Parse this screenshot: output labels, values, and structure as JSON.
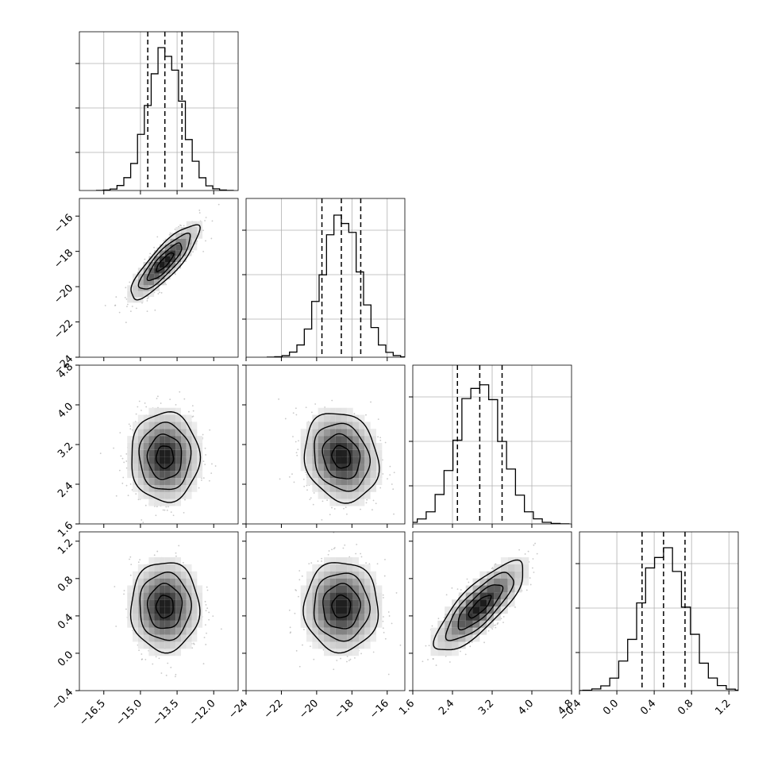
{
  "chart_data": {
    "type": "corner",
    "title": "",
    "xlabel": "",
    "ylabel": "",
    "params": [
      {
        "center": -14.0,
        "sigma": 0.7,
        "range": [
          -17.5,
          -11.0
        ],
        "ticks": [
          -16.5,
          -15.0,
          -13.5,
          -12.0
        ],
        "tick_labels": [
          "−16.5",
          "−15.0",
          "−13.5",
          "−12.0"
        ],
        "quantiles": [
          -14.7,
          -14.0,
          -13.3
        ]
      },
      {
        "center": -18.6,
        "sigma": 1.05,
        "range": [
          -24.0,
          -15.0
        ],
        "ticks": [
          -24,
          -22,
          -20,
          -18,
          -16
        ],
        "tick_labels": [
          "−24",
          "−22",
          "−20",
          "−18",
          "−16"
        ],
        "quantiles": [
          -19.7,
          -18.6,
          -17.5
        ]
      },
      {
        "center": 2.95,
        "sigma": 0.45,
        "range": [
          1.6,
          4.8
        ],
        "ticks": [
          1.6,
          2.4,
          3.2,
          4.0,
          4.8
        ],
        "tick_labels": [
          "1.6",
          "2.4",
          "3.2",
          "4.0",
          "4.8"
        ],
        "quantiles": [
          2.5,
          2.95,
          3.4
        ]
      },
      {
        "center": 0.5,
        "sigma": 0.24,
        "range": [
          -0.4,
          1.3
        ],
        "ticks": [
          -0.4,
          0.0,
          0.4,
          0.8,
          1.2
        ],
        "tick_labels": [
          "−0.4",
          "0.0",
          "0.4",
          "0.8",
          "1.2"
        ],
        "quantiles": [
          0.27,
          0.5,
          0.73
        ]
      }
    ],
    "correlations": [
      [
        1.0,
        0.85,
        0.0,
        0.0
      ],
      [
        0.85,
        1.0,
        -0.15,
        0.0
      ],
      [
        0.0,
        -0.15,
        1.0,
        0.8
      ],
      [
        0.0,
        0.0,
        0.8,
        1.0
      ]
    ],
    "contour_levels_sigma": [
      0.5,
      1.0,
      1.5,
      2.0
    ],
    "grid": true,
    "colors": {
      "line": "#000000",
      "points": "#9a9a9a",
      "grid": "#b0b0b0"
    }
  }
}
